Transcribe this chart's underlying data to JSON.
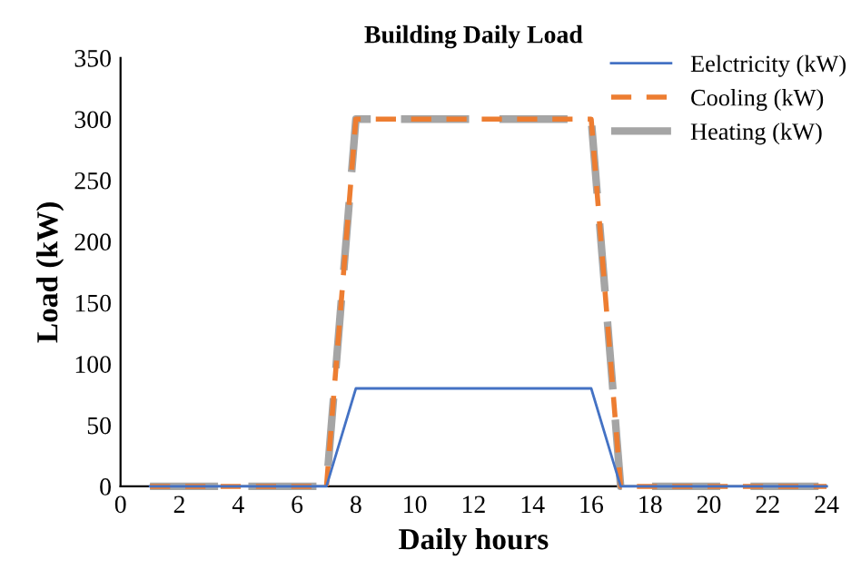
{
  "chart_data": {
    "type": "line",
    "title": "Building Daily Load",
    "xlabel": "Daily hours",
    "ylabel": "Load (kW)",
    "x": [
      1,
      2,
      3,
      4,
      5,
      6,
      7,
      8,
      9,
      10,
      11,
      12,
      13,
      14,
      15,
      16,
      17,
      18,
      19,
      20,
      21,
      22,
      23,
      24
    ],
    "series": [
      {
        "name": "Eelctricity (kW)",
        "color": "#4472c4",
        "line_style": "solid",
        "values": [
          0,
          0,
          0,
          0,
          0,
          0,
          0,
          80,
          80,
          80,
          80,
          80,
          80,
          80,
          80,
          80,
          0,
          0,
          0,
          0,
          0,
          0,
          0,
          0
        ]
      },
      {
        "name": "Cooling (kW)",
        "color": "#ed7d31",
        "line_style": "dashed",
        "values": [
          0,
          0,
          0,
          0,
          0,
          0,
          0,
          300,
          300,
          300,
          300,
          300,
          300,
          300,
          300,
          300,
          0,
          0,
          0,
          0,
          0,
          0,
          0,
          0
        ]
      },
      {
        "name": "Heating (kW)",
        "color": "#a5a5a5",
        "line_style": "longdash",
        "values": [
          0,
          0,
          0,
          0,
          0,
          0,
          0,
          300,
          300,
          300,
          300,
          300,
          300,
          300,
          300,
          300,
          0,
          0,
          0,
          0,
          0,
          0,
          0,
          0
        ]
      }
    ],
    "xlim": [
      0,
      24
    ],
    "xticks": [
      0,
      2,
      4,
      6,
      8,
      10,
      12,
      14,
      16,
      18,
      20,
      22,
      24
    ],
    "ylim": [
      0,
      350
    ],
    "yticks": [
      0,
      50,
      100,
      150,
      200,
      250,
      300,
      350
    ],
    "grid": false,
    "legend": "top right",
    "marker": "none"
  }
}
